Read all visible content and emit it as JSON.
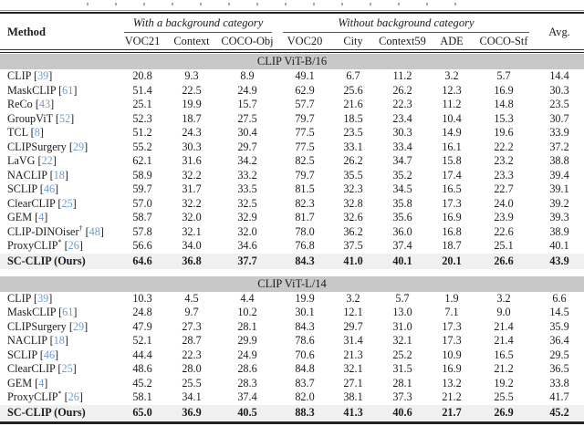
{
  "table": {
    "colors": {
      "citation": "#6d9bd6",
      "section_band_bg": "#c8c8c8",
      "highlight_row_bg": "#f0f0f0",
      "rule": "#222222"
    },
    "header": {
      "method_label": "Method",
      "avg_label": "Avg.",
      "groups": [
        {
          "label": "With a background category",
          "columns": [
            "VOC21",
            "Context",
            "COCO-Obj"
          ]
        },
        {
          "label": "Without background category",
          "columns": [
            "VOC20",
            "City",
            "Context59",
            "ADE",
            "COCO-Stf"
          ]
        }
      ]
    },
    "sections": [
      {
        "title": "CLIP ViT-B/16",
        "rows": [
          {
            "method": "CLIP",
            "sup": "",
            "cite": "39",
            "values": [
              "20.8",
              "9.3",
              "8.9",
              "49.1",
              "6.7",
              "11.2",
              "3.2",
              "5.7"
            ],
            "avg": "14.4",
            "highlight": false
          },
          {
            "method": "MaskCLIP",
            "sup": "",
            "cite": "61",
            "values": [
              "51.4",
              "22.5",
              "24.9",
              "62.9",
              "25.6",
              "26.2",
              "12.3",
              "16.9"
            ],
            "avg": "30.3",
            "highlight": false
          },
          {
            "method": "ReCo",
            "sup": "",
            "cite": "43",
            "values": [
              "25.1",
              "19.9",
              "15.7",
              "57.7",
              "21.6",
              "22.3",
              "11.2",
              "14.8"
            ],
            "avg": "23.5",
            "highlight": false
          },
          {
            "method": "GroupViT",
            "sup": "",
            "cite": "52",
            "values": [
              "52.3",
              "18.7",
              "27.5",
              "79.7",
              "18.5",
              "23.4",
              "10.4",
              "15.3"
            ],
            "avg": "30.7",
            "highlight": false
          },
          {
            "method": "TCL",
            "sup": "",
            "cite": "8",
            "values": [
              "51.2",
              "24.3",
              "30.4",
              "77.5",
              "23.5",
              "30.3",
              "14.9",
              "19.6"
            ],
            "avg": "33.9",
            "highlight": false
          },
          {
            "method": "CLIPSurgery",
            "sup": "",
            "cite": "29",
            "values": [
              "55.2",
              "30.3",
              "29.7",
              "77.5",
              "33.1",
              "33.4",
              "16.1",
              "22.2"
            ],
            "avg": "37.2",
            "highlight": false
          },
          {
            "method": "LaVG",
            "sup": "",
            "cite": "22",
            "values": [
              "62.1",
              "31.6",
              "34.2",
              "82.5",
              "26.2",
              "34.7",
              "15.8",
              "23.2"
            ],
            "avg": "38.8",
            "highlight": false
          },
          {
            "method": "NACLIP",
            "sup": "",
            "cite": "18",
            "values": [
              "58.9",
              "32.2",
              "33.2",
              "79.7",
              "35.5",
              "35.2",
              "17.4",
              "23.3"
            ],
            "avg": "39.4",
            "highlight": false
          },
          {
            "method": "SCLIP",
            "sup": "",
            "cite": "46",
            "values": [
              "59.7",
              "31.7",
              "33.5",
              "81.5",
              "32.3",
              "34.5",
              "16.5",
              "22.7"
            ],
            "avg": "39.1",
            "highlight": false
          },
          {
            "method": "ClearCLIP",
            "sup": "",
            "cite": "25",
            "values": [
              "57.0",
              "32.2",
              "32.5",
              "82.3",
              "32.8",
              "35.8",
              "17.3",
              "24.0"
            ],
            "avg": "39.2",
            "highlight": false
          },
          {
            "method": "GEM",
            "sup": "",
            "cite": "4",
            "values": [
              "58.7",
              "32.0",
              "32.9",
              "81.7",
              "32.6",
              "35.6",
              "16.9",
              "23.9"
            ],
            "avg": "39.3",
            "highlight": false
          },
          {
            "method": "CLIP-DINOiser",
            "sup": "†",
            "cite": "48",
            "values": [
              "57.8",
              "32.1",
              "32.0",
              "78.0",
              "36.2",
              "36.0",
              "16.8",
              "22.6"
            ],
            "avg": "38.9",
            "highlight": false
          },
          {
            "method": "ProxyCLIP",
            "sup": "*",
            "cite": "26",
            "values": [
              "56.6",
              "34.0",
              "34.6",
              "76.8",
              "37.5",
              "37.4",
              "18.7",
              "25.1"
            ],
            "avg": "40.1",
            "highlight": false
          },
          {
            "method": "SC-CLIP (Ours)",
            "sup": "",
            "cite": "",
            "values": [
              "64.6",
              "36.8",
              "37.7",
              "84.3",
              "41.0",
              "40.1",
              "20.1",
              "26.6"
            ],
            "avg": "43.9",
            "highlight": true
          }
        ]
      },
      {
        "title": "CLIP ViT-L/14",
        "rows": [
          {
            "method": "CLIP",
            "sup": "",
            "cite": "39",
            "values": [
              "10.3",
              "4.5",
              "4.4",
              "19.9",
              "3.2",
              "5.7",
              "1.9",
              "3.2"
            ],
            "avg": "6.6",
            "highlight": false
          },
          {
            "method": "MaskCLIP",
            "sup": "",
            "cite": "61",
            "values": [
              "24.8",
              "9.7",
              "10.2",
              "30.1",
              "12.1",
              "13.0",
              "7.1",
              "9.0"
            ],
            "avg": "14.5",
            "highlight": false
          },
          {
            "method": "CLIPSurgery",
            "sup": "",
            "cite": "29",
            "values": [
              "47.9",
              "27.3",
              "28.1",
              "84.3",
              "29.7",
              "31.0",
              "17.3",
              "21.4"
            ],
            "avg": "35.9",
            "highlight": false
          },
          {
            "method": "NACLIP",
            "sup": "",
            "cite": "18",
            "values": [
              "52.1",
              "28.7",
              "29.9",
              "78.6",
              "31.4",
              "32.1",
              "17.3",
              "21.4"
            ],
            "avg": "36.4",
            "highlight": false
          },
          {
            "method": "SCLIP",
            "sup": "",
            "cite": "46",
            "values": [
              "44.4",
              "22.3",
              "24.9",
              "70.6",
              "21.3",
              "25.2",
              "10.9",
              "16.5"
            ],
            "avg": "29.5",
            "highlight": false
          },
          {
            "method": "ClearCLIP",
            "sup": "",
            "cite": "25",
            "values": [
              "48.6",
              "28.0",
              "28.6",
              "84.8",
              "32.1",
              "31.5",
              "16.9",
              "21.2"
            ],
            "avg": "36.5",
            "highlight": false
          },
          {
            "method": "GEM",
            "sup": "",
            "cite": "4",
            "values": [
              "45.2",
              "25.5",
              "28.3",
              "83.7",
              "27.1",
              "28.1",
              "13.2",
              "19.2"
            ],
            "avg": "33.8",
            "highlight": false
          },
          {
            "method": "ProxyCLIP",
            "sup": "*",
            "cite": "26",
            "values": [
              "58.1",
              "34.1",
              "37.4",
              "82.0",
              "38.1",
              "37.3",
              "21.2",
              "25.5"
            ],
            "avg": "41.7",
            "highlight": false
          },
          {
            "method": "SC-CLIP (Ours)",
            "sup": "",
            "cite": "",
            "values": [
              "65.0",
              "36.9",
              "40.5",
              "88.3",
              "41.3",
              "40.6",
              "21.7",
              "26.9"
            ],
            "avg": "45.2",
            "highlight": true
          }
        ]
      }
    ]
  }
}
